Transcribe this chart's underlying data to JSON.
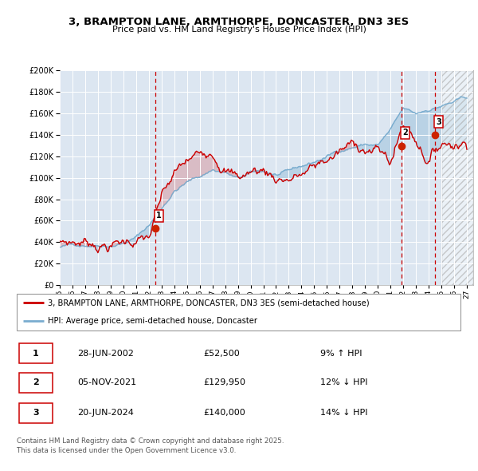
{
  "title": "3, BRAMPTON LANE, ARMTHORPE, DONCASTER, DN3 3ES",
  "subtitle": "Price paid vs. HM Land Registry's House Price Index (HPI)",
  "footer": "Contains HM Land Registry data © Crown copyright and database right 2025.\nThis data is licensed under the Open Government Licence v3.0.",
  "legend_line1": "3, BRAMPTON LANE, ARMTHORPE, DONCASTER, DN3 3ES (semi-detached house)",
  "legend_line2": "HPI: Average price, semi-detached house, Doncaster",
  "sale_color": "#cc0000",
  "hpi_color": "#7aadcf",
  "bg_color": "#dce6f1",
  "hatch_color": "#b0b8cc",
  "ylim": [
    0,
    200000
  ],
  "xlim_start": 1995.0,
  "xlim_end": 2027.5,
  "hatch_start": 2025.0,
  "transactions": [
    {
      "label": "1",
      "date": 2002.49,
      "price": 52500,
      "vline_x": 2002.49
    },
    {
      "label": "2",
      "date": 2021.84,
      "price": 129950,
      "vline_x": 2021.84
    },
    {
      "label": "3",
      "date": 2024.47,
      "price": 140000,
      "vline_x": 2024.47
    }
  ],
  "transaction_info": [
    {
      "num": "1",
      "date": "28-JUN-2002",
      "price": "£52,500",
      "hpi": "9% ↑ HPI"
    },
    {
      "num": "2",
      "date": "05-NOV-2021",
      "price": "£129,950",
      "hpi": "12% ↓ HPI"
    },
    {
      "num": "3",
      "date": "20-JUN-2024",
      "price": "£140,000",
      "hpi": "14% ↓ HPI"
    }
  ],
  "xtick_years": [
    1995,
    1996,
    1997,
    1998,
    1999,
    2000,
    2001,
    2002,
    2003,
    2004,
    2005,
    2006,
    2007,
    2008,
    2009,
    2010,
    2011,
    2012,
    2013,
    2014,
    2015,
    2016,
    2017,
    2018,
    2019,
    2020,
    2021,
    2022,
    2023,
    2024,
    2025,
    2026,
    2027
  ],
  "yticks": [
    0,
    20000,
    40000,
    60000,
    80000,
    100000,
    120000,
    140000,
    160000,
    180000,
    200000
  ]
}
